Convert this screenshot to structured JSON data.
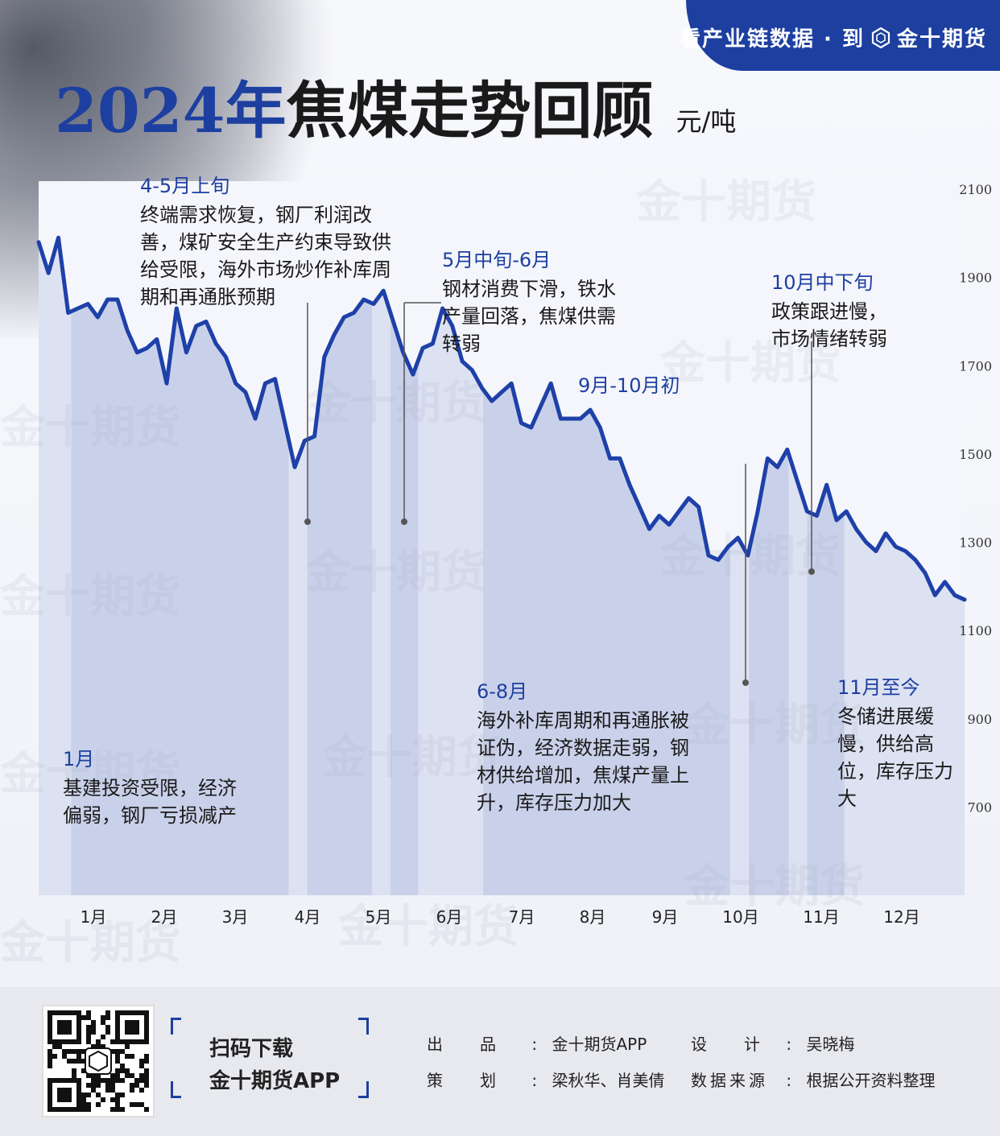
{
  "banner": {
    "text": "看产业链数据 · 到",
    "brand": "金十期货"
  },
  "title": {
    "year": "2024年",
    "main": "焦煤走势回顾",
    "unit": "元/吨"
  },
  "chart_data": {
    "type": "line",
    "y_ticks": [
      "2100",
      "1900",
      "1700",
      "1500",
      "1300",
      "1100",
      "900",
      "700"
    ],
    "ylim": [
      500,
      2100
    ],
    "x_ticks": [
      "1月",
      "2月",
      "3月",
      "4月",
      "5月",
      "6月",
      "7月",
      "8月",
      "9月",
      "10月",
      "11月",
      "12月"
    ],
    "series": [
      {
        "values": [
          1980,
          1910,
          1990,
          1820,
          1830,
          1840,
          1810,
          1850,
          1850,
          1780,
          1730,
          1740,
          1760,
          1660,
          1830,
          1730,
          1790,
          1800,
          1750,
          1720,
          1660,
          1640,
          1580,
          1660,
          1670,
          1570,
          1470,
          1530,
          1540,
          1720,
          1770,
          1810,
          1820,
          1850,
          1840,
          1870,
          1800,
          1730,
          1680,
          1740,
          1750,
          1830,
          1790,
          1710,
          1690,
          1650,
          1620,
          1640,
          1660,
          1570,
          1560,
          1610,
          1660,
          1580,
          1580,
          1580,
          1600,
          1560,
          1490,
          1490,
          1430,
          1380,
          1330,
          1360,
          1340,
          1370,
          1400,
          1380,
          1270,
          1260,
          1290,
          1310,
          1270,
          1370,
          1490,
          1470,
          1510,
          1440,
          1370,
          1360,
          1430,
          1350,
          1370,
          1330,
          1300,
          1280,
          1320,
          1290,
          1280,
          1260,
          1230,
          1180,
          1210,
          1180,
          1170
        ]
      }
    ],
    "bands": [
      {
        "from": 0,
        "to": 0.035,
        "shade": "dark"
      },
      {
        "from": 0.035,
        "to": 0.27,
        "shade": "light"
      },
      {
        "from": 0.27,
        "to": 0.29,
        "shade": "dark"
      },
      {
        "from": 0.29,
        "to": 0.36,
        "shade": "light"
      },
      {
        "from": 0.36,
        "to": 0.38,
        "shade": "dark"
      },
      {
        "from": 0.38,
        "to": 0.41,
        "shade": "light"
      },
      {
        "from": 0.41,
        "to": 0.48,
        "shade": "dark"
      },
      {
        "from": 0.48,
        "to": 0.747,
        "shade": "light"
      },
      {
        "from": 0.747,
        "to": 0.767,
        "shade": "dark"
      },
      {
        "from": 0.767,
        "to": 0.81,
        "shade": "light"
      },
      {
        "from": 0.81,
        "to": 0.83,
        "shade": "dark"
      },
      {
        "from": 0.83,
        "to": 0.87,
        "shade": "light"
      },
      {
        "from": 0.87,
        "to": 1.0,
        "shade": "dark"
      }
    ],
    "colors": {
      "line": "#1e40a8",
      "band_light": "#c9d1ea",
      "band_dark": "#dde2f2"
    }
  },
  "annotations": [
    {
      "title": "4-5月上旬",
      "body": "终端需求恢复，钢厂利润改善，煤矿安全生产约束导致供给受限，海外市场炒作补库周期和再通胀预期"
    },
    {
      "title": "5月中旬-6月",
      "body": "钢材消费下滑，铁水产量回落，焦煤供需转弱"
    },
    {
      "title": "10月中下旬",
      "body": "政策跟进慢，市场情绪转弱"
    },
    {
      "title": "9月-10月初",
      "body": ""
    },
    {
      "title": "6-8月",
      "body": "海外补库周期和再通胀被证伪，经济数据走弱，钢材供给增加，焦煤产量上升，库存压力加大"
    },
    {
      "title": "11月至今",
      "body": "冬储进展缓慢，供给高位，库存压力大"
    },
    {
      "title": "1月",
      "body": "基建投资受限，经济偏弱，钢厂亏损减产"
    }
  ],
  "footer": {
    "scan_line1": "扫码下载",
    "scan_line2": "金十期货APP",
    "credits": [
      {
        "label": "出　　品",
        "value": "金十期货APP"
      },
      {
        "label": "策　　划",
        "value": "梁秋华、肖美倩"
      },
      {
        "label": "设　　计",
        "value": "吴晓梅"
      },
      {
        "label": "数据来源",
        "value": "根据公开资料整理"
      }
    ]
  }
}
